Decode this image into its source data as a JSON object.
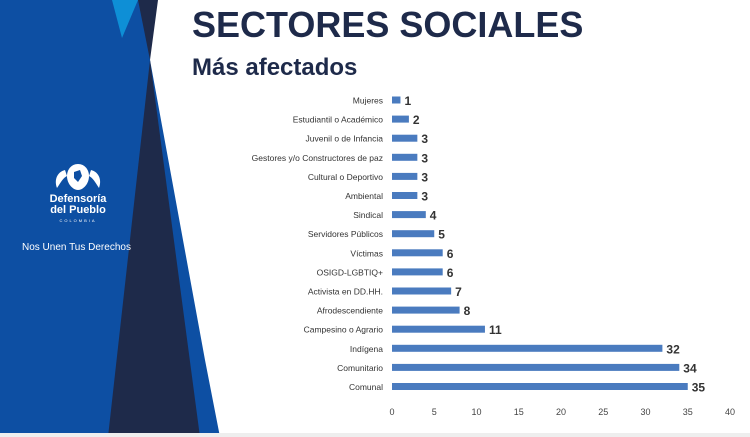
{
  "slide": {
    "title": "SECTORES SOCIALES",
    "subtitle": "Más afectados",
    "brand_line1": "Defensoría",
    "brand_line2": "del Pueblo",
    "brand_country": "COLOMBIA",
    "tagline": "Nos Unen Tus Derechos"
  },
  "colors": {
    "panel_blue": "#0d4fa3",
    "panel_dark": "#1e2a4a",
    "panel_light": "#0e8fd6",
    "bar": "#4a7bbf",
    "title": "#1e2a4a"
  },
  "chart_data": {
    "type": "bar",
    "orientation": "horizontal",
    "categories": [
      "Mujeres",
      "Estudiantil o Académico",
      "Juvenil o de Infancia",
      "Gestores y/o Constructores de paz",
      "Cultural o Deportivo",
      "Ambiental",
      "Sindical",
      "Servidores Públicos",
      "Víctimas",
      "OSIGD-LGBTIQ+",
      "Activista en DD.HH.",
      "Afrodescendiente",
      "Campesino o Agrario",
      "Indígena",
      "Comunitario",
      "Comunal"
    ],
    "values": [
      1,
      2,
      3,
      3,
      3,
      3,
      4,
      5,
      6,
      6,
      7,
      8,
      11,
      32,
      34,
      35
    ],
    "xlim": [
      0,
      40
    ],
    "xticks": [
      0,
      5,
      10,
      15,
      20,
      25,
      30,
      35,
      40
    ],
    "grid": false,
    "data_labels": true
  }
}
